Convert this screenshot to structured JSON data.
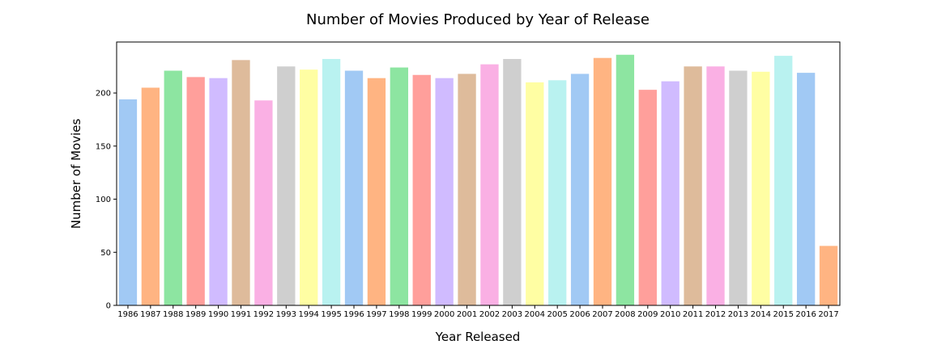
{
  "chart_data": {
    "type": "bar",
    "title": "Number of Movies Produced by Year of Release",
    "xlabel": "Year Released",
    "ylabel": "Number of Movies",
    "categories": [
      "1986",
      "1987",
      "1988",
      "1989",
      "1990",
      "1991",
      "1992",
      "1993",
      "1994",
      "1995",
      "1996",
      "1997",
      "1998",
      "1999",
      "2000",
      "2001",
      "2002",
      "2003",
      "2004",
      "2005",
      "2006",
      "2007",
      "2008",
      "2009",
      "2010",
      "2011",
      "2012",
      "2013",
      "2014",
      "2015",
      "2016",
      "2017"
    ],
    "values": [
      194,
      205,
      221,
      215,
      214,
      231,
      193,
      225,
      222,
      232,
      221,
      214,
      224,
      217,
      214,
      218,
      227,
      232,
      210,
      212,
      218,
      233,
      236,
      203,
      211,
      225,
      225,
      221,
      220,
      235,
      219,
      56
    ],
    "ylim": [
      0,
      248
    ],
    "yticks": [
      0,
      50,
      100,
      150,
      200
    ],
    "grid": false,
    "legend": "none",
    "palette": [
      "#a1c9f4",
      "#ffb482",
      "#8de5a1",
      "#ff9f9b",
      "#d0bbff",
      "#debb9b",
      "#fab0e4",
      "#cfcfcf",
      "#fffea3",
      "#b9f2f0"
    ]
  }
}
